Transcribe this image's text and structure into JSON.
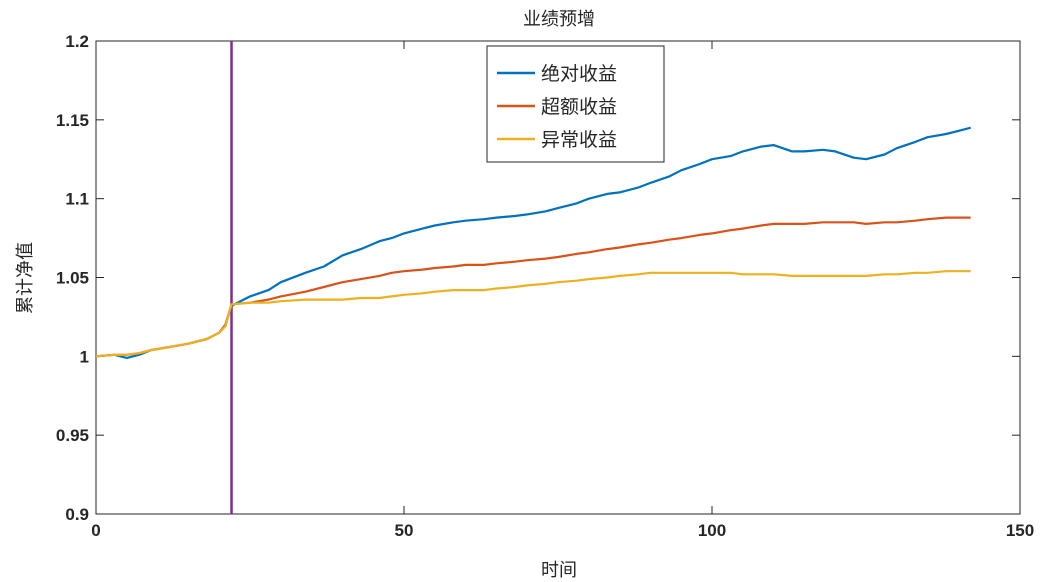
{
  "chart_data": {
    "type": "line",
    "title": "业绩预增",
    "xlabel": "时间",
    "ylabel": "累计净值",
    "xlim": [
      0,
      150
    ],
    "ylim": [
      0.9,
      1.2
    ],
    "xticks": [
      0,
      50,
      100,
      150
    ],
    "yticks": [
      0.9,
      0.95,
      1,
      1.05,
      1.1,
      1.15,
      1.2
    ],
    "xtick_labels": [
      "0",
      "50",
      "100",
      "150"
    ],
    "ytick_labels": [
      "0.9",
      "0.95",
      "1",
      "1.05",
      "1.1",
      "1.15",
      "1.2"
    ],
    "grid": false,
    "legend_position": "top-center",
    "event_line": {
      "x": 22,
      "color": "#7E2F8E"
    },
    "series": [
      {
        "name": "绝对收益",
        "color": "#0072BD",
        "points": [
          [
            0,
            1.0
          ],
          [
            3,
            1.001
          ],
          [
            5,
            0.999
          ],
          [
            7,
            1.001
          ],
          [
            9,
            1.004
          ],
          [
            12,
            1.006
          ],
          [
            15,
            1.008
          ],
          [
            18,
            1.011
          ],
          [
            20,
            1.015
          ],
          [
            21,
            1.02
          ],
          [
            22,
            1.032
          ],
          [
            25,
            1.038
          ],
          [
            28,
            1.042
          ],
          [
            30,
            1.047
          ],
          [
            34,
            1.053
          ],
          [
            37,
            1.057
          ],
          [
            40,
            1.064
          ],
          [
            43,
            1.068
          ],
          [
            46,
            1.073
          ],
          [
            48,
            1.075
          ],
          [
            50,
            1.078
          ],
          [
            53,
            1.081
          ],
          [
            55,
            1.083
          ],
          [
            58,
            1.085
          ],
          [
            60,
            1.086
          ],
          [
            63,
            1.087
          ],
          [
            65,
            1.088
          ],
          [
            68,
            1.089
          ],
          [
            70,
            1.09
          ],
          [
            73,
            1.092
          ],
          [
            75,
            1.094
          ],
          [
            78,
            1.097
          ],
          [
            80,
            1.1
          ],
          [
            83,
            1.103
          ],
          [
            85,
            1.104
          ],
          [
            88,
            1.107
          ],
          [
            90,
            1.11
          ],
          [
            93,
            1.114
          ],
          [
            95,
            1.118
          ],
          [
            98,
            1.122
          ],
          [
            100,
            1.125
          ],
          [
            103,
            1.127
          ],
          [
            105,
            1.13
          ],
          [
            108,
            1.133
          ],
          [
            110,
            1.134
          ],
          [
            113,
            1.13
          ],
          [
            115,
            1.13
          ],
          [
            118,
            1.131
          ],
          [
            120,
            1.13
          ],
          [
            123,
            1.126
          ],
          [
            125,
            1.125
          ],
          [
            128,
            1.128
          ],
          [
            130,
            1.132
          ],
          [
            133,
            1.136
          ],
          [
            135,
            1.139
          ],
          [
            138,
            1.141
          ],
          [
            140,
            1.143
          ],
          [
            142,
            1.145
          ]
        ]
      },
      {
        "name": "超额收益",
        "color": "#D95319",
        "points": [
          [
            0,
            1.0
          ],
          [
            3,
            1.001
          ],
          [
            5,
            1.001
          ],
          [
            7,
            1.002
          ],
          [
            9,
            1.004
          ],
          [
            12,
            1.006
          ],
          [
            15,
            1.008
          ],
          [
            18,
            1.011
          ],
          [
            20,
            1.015
          ],
          [
            21,
            1.02
          ],
          [
            22,
            1.033
          ],
          [
            25,
            1.034
          ],
          [
            28,
            1.036
          ],
          [
            30,
            1.038
          ],
          [
            34,
            1.041
          ],
          [
            37,
            1.044
          ],
          [
            40,
            1.047
          ],
          [
            43,
            1.049
          ],
          [
            46,
            1.051
          ],
          [
            48,
            1.053
          ],
          [
            50,
            1.054
          ],
          [
            53,
            1.055
          ],
          [
            55,
            1.056
          ],
          [
            58,
            1.057
          ],
          [
            60,
            1.058
          ],
          [
            63,
            1.058
          ],
          [
            65,
            1.059
          ],
          [
            68,
            1.06
          ],
          [
            70,
            1.061
          ],
          [
            73,
            1.062
          ],
          [
            75,
            1.063
          ],
          [
            78,
            1.065
          ],
          [
            80,
            1.066
          ],
          [
            83,
            1.068
          ],
          [
            85,
            1.069
          ],
          [
            88,
            1.071
          ],
          [
            90,
            1.072
          ],
          [
            93,
            1.074
          ],
          [
            95,
            1.075
          ],
          [
            98,
            1.077
          ],
          [
            100,
            1.078
          ],
          [
            103,
            1.08
          ],
          [
            105,
            1.081
          ],
          [
            108,
            1.083
          ],
          [
            110,
            1.084
          ],
          [
            113,
            1.084
          ],
          [
            115,
            1.084
          ],
          [
            118,
            1.085
          ],
          [
            120,
            1.085
          ],
          [
            123,
            1.085
          ],
          [
            125,
            1.084
          ],
          [
            128,
            1.085
          ],
          [
            130,
            1.085
          ],
          [
            133,
            1.086
          ],
          [
            135,
            1.087
          ],
          [
            138,
            1.088
          ],
          [
            140,
            1.088
          ],
          [
            142,
            1.088
          ]
        ]
      },
      {
        "name": "异常收益",
        "color": "#EDB120",
        "points": [
          [
            0,
            1.0
          ],
          [
            3,
            1.001
          ],
          [
            5,
            1.001
          ],
          [
            7,
            1.002
          ],
          [
            9,
            1.004
          ],
          [
            12,
            1.006
          ],
          [
            15,
            1.008
          ],
          [
            18,
            1.011
          ],
          [
            20,
            1.015
          ],
          [
            21,
            1.019
          ],
          [
            22,
            1.033
          ],
          [
            25,
            1.034
          ],
          [
            28,
            1.034
          ],
          [
            30,
            1.035
          ],
          [
            34,
            1.036
          ],
          [
            37,
            1.036
          ],
          [
            40,
            1.036
          ],
          [
            43,
            1.037
          ],
          [
            46,
            1.037
          ],
          [
            48,
            1.038
          ],
          [
            50,
            1.039
          ],
          [
            53,
            1.04
          ],
          [
            55,
            1.041
          ],
          [
            58,
            1.042
          ],
          [
            60,
            1.042
          ],
          [
            63,
            1.042
          ],
          [
            65,
            1.043
          ],
          [
            68,
            1.044
          ],
          [
            70,
            1.045
          ],
          [
            73,
            1.046
          ],
          [
            75,
            1.047
          ],
          [
            78,
            1.048
          ],
          [
            80,
            1.049
          ],
          [
            83,
            1.05
          ],
          [
            85,
            1.051
          ],
          [
            88,
            1.052
          ],
          [
            90,
            1.053
          ],
          [
            93,
            1.053
          ],
          [
            95,
            1.053
          ],
          [
            98,
            1.053
          ],
          [
            100,
            1.053
          ],
          [
            103,
            1.053
          ],
          [
            105,
            1.052
          ],
          [
            108,
            1.052
          ],
          [
            110,
            1.052
          ],
          [
            113,
            1.051
          ],
          [
            115,
            1.051
          ],
          [
            118,
            1.051
          ],
          [
            120,
            1.051
          ],
          [
            123,
            1.051
          ],
          [
            125,
            1.051
          ],
          [
            128,
            1.052
          ],
          [
            130,
            1.052
          ],
          [
            133,
            1.053
          ],
          [
            135,
            1.053
          ],
          [
            138,
            1.054
          ],
          [
            140,
            1.054
          ],
          [
            142,
            1.054
          ]
        ]
      }
    ]
  }
}
